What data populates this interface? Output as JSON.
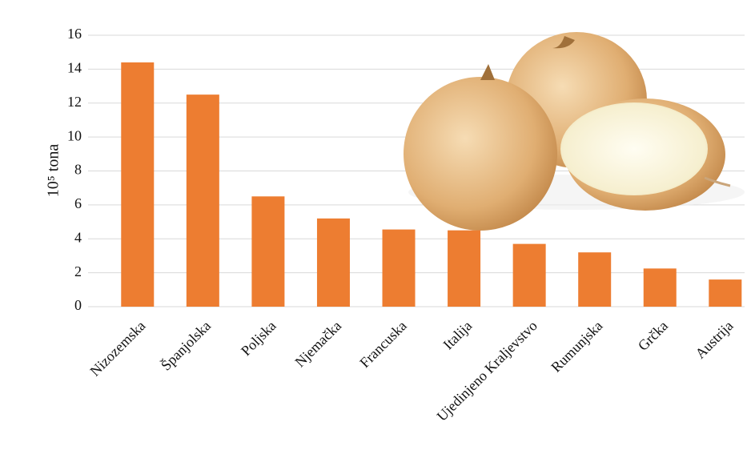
{
  "chart_data": {
    "type": "bar",
    "y_label": "10⁵ tona",
    "categories": [
      "Nizozemska",
      "Španjolska",
      "Poljska",
      "Njemačka",
      "Francuska",
      "Italija",
      "Ujedinjeno Kraljevstvo",
      "Rumunjska",
      "Grčka",
      "Austrija"
    ],
    "values": [
      14.4,
      12.5,
      6.5,
      5.2,
      4.55,
      4.5,
      3.7,
      3.2,
      2.25,
      1.6
    ],
    "color": "#ed7d31",
    "ylim": [
      0,
      16
    ],
    "yticks": [
      0,
      2,
      4,
      6,
      8,
      10,
      12,
      14,
      16
    ],
    "grid": true
  }
}
